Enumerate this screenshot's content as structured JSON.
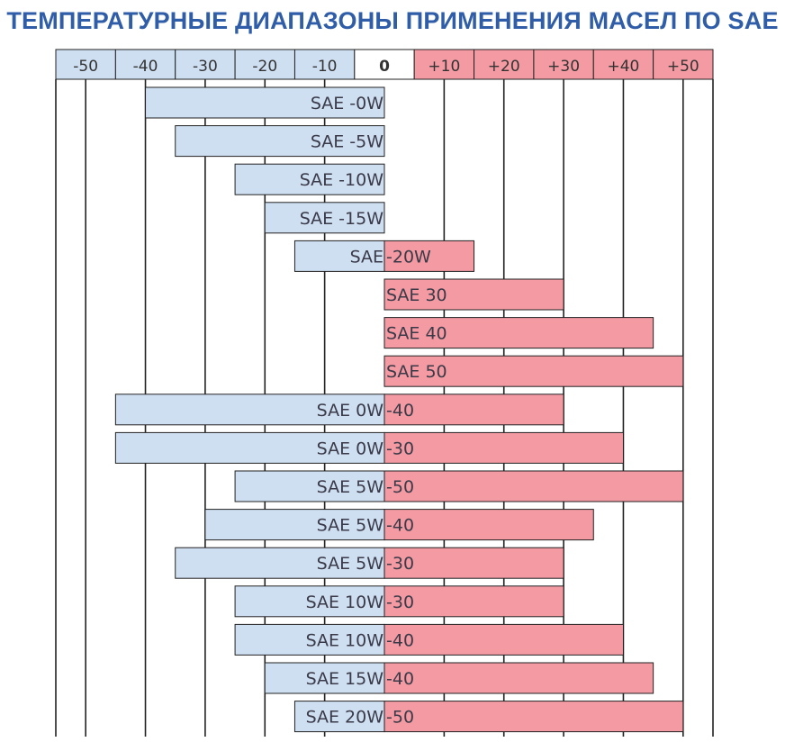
{
  "title": "ТЕМПЕРАТУРНЫЕ ДИАПАЗОНЫ ПРИМЕНЕНИЯ МАСЕЛ ПО SAE",
  "colors": {
    "cold": "#cfdff2",
    "hot": "#f39aa3",
    "title": "#2f5da8",
    "grid": "#222222",
    "tick_text": "#333333"
  },
  "chart_data": {
    "type": "bar",
    "orientation": "horizontal-range",
    "title": "ТЕМПЕРАТУРНЫЕ ДИАПАЗОНЫ ПРИМЕНЕНИЯ МАСЕЛ ПО SAE",
    "xlabel": "",
    "ylabel": "",
    "xlim": [
      -50,
      50
    ],
    "grid": true,
    "ticks": [
      "-50",
      "-40",
      "-30",
      "-20",
      "-10",
      "0",
      "+10",
      "+20",
      "+30",
      "+40",
      "+50"
    ],
    "tick_values": [
      -50,
      -40,
      -30,
      -20,
      -10,
      0,
      10,
      20,
      30,
      40,
      50
    ],
    "bars": [
      {
        "left": "SAE -0W",
        "right": "",
        "start": -40,
        "end": 0
      },
      {
        "left": "SAE -5W",
        "right": "",
        "start": -35,
        "end": 0
      },
      {
        "left": "SAE -10W",
        "right": "",
        "start": -25,
        "end": 0
      },
      {
        "left": "SAE -15W",
        "right": "",
        "start": -20,
        "end": 0
      },
      {
        "left": "SAE ",
        "right": "-20W",
        "start": -15,
        "end": 15
      },
      {
        "left": "",
        "right": "SAE 30",
        "start": 0,
        "end": 30
      },
      {
        "left": "",
        "right": "SAE 40",
        "start": 0,
        "end": 45
      },
      {
        "left": "",
        "right": "SAE 50",
        "start": 0,
        "end": 50
      },
      {
        "left": "SAE 0W",
        "right": "-40",
        "start": -45,
        "end": 30
      },
      {
        "left": "SAE 0W",
        "right": "-30",
        "start": -45,
        "end": 40
      },
      {
        "left": "SAE 5W",
        "right": "-50",
        "start": -25,
        "end": 50
      },
      {
        "left": "SAE 5W",
        "right": "-40",
        "start": -30,
        "end": 35
      },
      {
        "left": "SAE 5W",
        "right": "-30",
        "start": -35,
        "end": 30
      },
      {
        "left": "SAE 10W",
        "right": "-30",
        "start": -25,
        "end": 30
      },
      {
        "left": "SAE 10W",
        "right": "-40",
        "start": -25,
        "end": 40
      },
      {
        "left": "SAE 15W",
        "right": "-40",
        "start": -20,
        "end": 45
      },
      {
        "left": "SAE 20W",
        "right": "-50",
        "start": -15,
        "end": 50
      }
    ]
  }
}
